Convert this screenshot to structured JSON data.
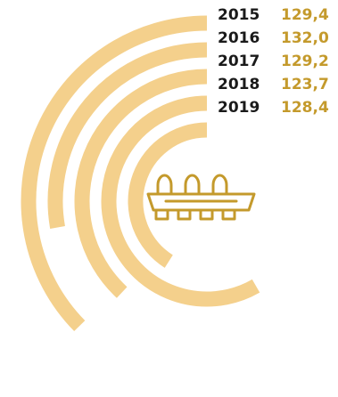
{
  "chart_data": {
    "type": "radial-bar",
    "categories": [
      "2015",
      "2016",
      "2017",
      "2018",
      "2019"
    ],
    "values": [
      "129,4",
      "132,0",
      "129,2",
      "123,7",
      "128,4"
    ],
    "numeric_values": [
      129.4,
      132.0,
      129.2,
      123.7,
      128.4
    ],
    "title": "",
    "xlabel": "",
    "ylabel": ""
  },
  "colors": {
    "arc": "#f4d08c",
    "value_text": "#c49a2c",
    "year_text": "#1a1a1a",
    "icon": "#c49a2c"
  },
  "icon": "egg-tray-icon"
}
